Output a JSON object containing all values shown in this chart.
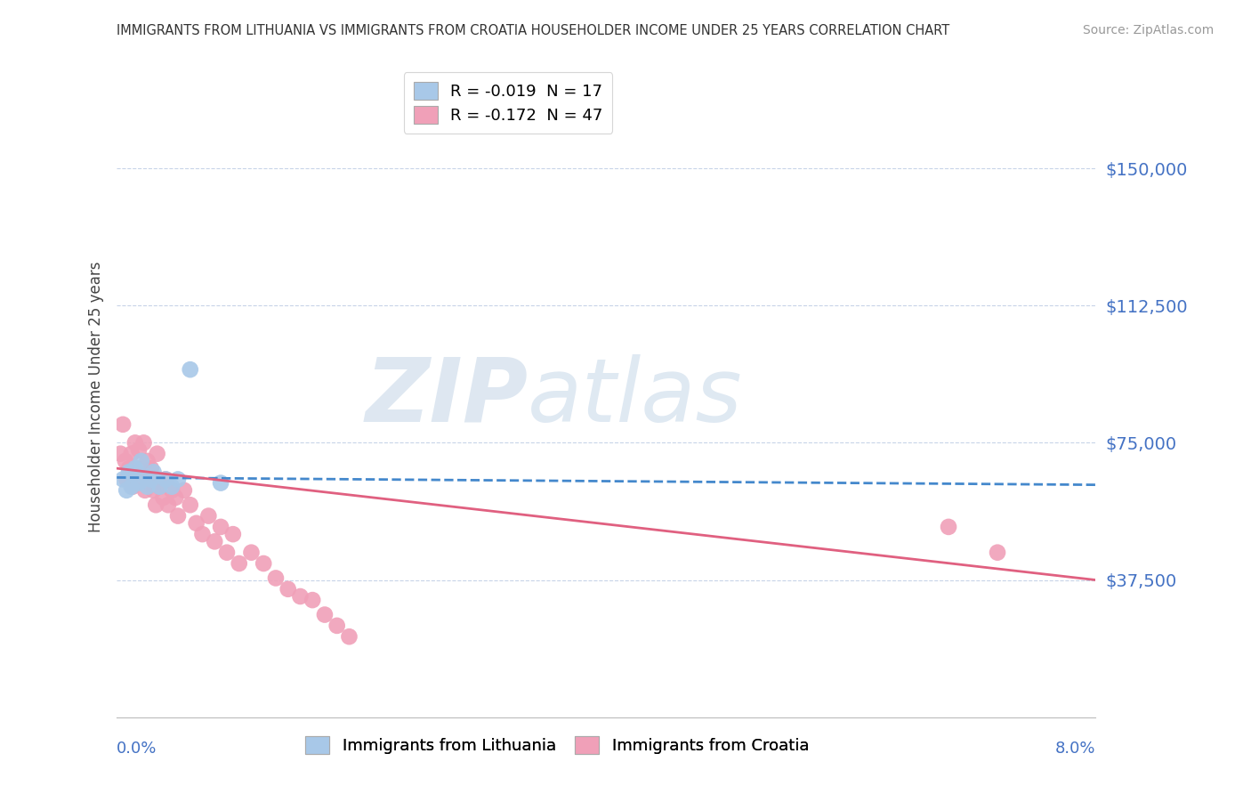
{
  "title": "IMMIGRANTS FROM LITHUANIA VS IMMIGRANTS FROM CROATIA HOUSEHOLDER INCOME UNDER 25 YEARS CORRELATION CHART",
  "source": "Source: ZipAtlas.com",
  "ylabel": "Householder Income Under 25 years",
  "xlim": [
    0.0,
    8.0
  ],
  "ylim": [
    0,
    175000
  ],
  "yticks": [
    37500,
    75000,
    112500,
    150000
  ],
  "ytick_labels": [
    "$37,500",
    "$75,000",
    "$112,500",
    "$150,000"
  ],
  "legend_r_entries": [
    "R = -0.019  N = 17",
    "R = -0.172  N = 47"
  ],
  "legend_labels_bottom": [
    "Immigrants from Lithuania",
    "Immigrants from Croatia"
  ],
  "background_color": "#ffffff",
  "grid_color": "#c8d4e8",
  "title_color": "#333333",
  "source_color": "#999999",
  "watermark_zip": "ZIP",
  "watermark_atlas": "atlas",
  "lithuania_color": "#a8c8e8",
  "croatia_color": "#f0a0b8",
  "lithuania_line_color": "#4488cc",
  "croatia_line_color": "#e06080",
  "lithuania_points_x": [
    0.05,
    0.08,
    0.1,
    0.12,
    0.15,
    0.18,
    0.2,
    0.22,
    0.25,
    0.28,
    0.3,
    0.35,
    0.4,
    0.45,
    0.5,
    0.6,
    0.85
  ],
  "lithuania_points_y": [
    65000,
    62000,
    67000,
    63000,
    68000,
    64000,
    70000,
    66000,
    63000,
    65000,
    67000,
    63000,
    65000,
    63000,
    65000,
    95000,
    64000
  ],
  "croatia_points_x": [
    0.03,
    0.05,
    0.07,
    0.08,
    0.1,
    0.12,
    0.13,
    0.15,
    0.17,
    0.18,
    0.2,
    0.22,
    0.23,
    0.25,
    0.27,
    0.28,
    0.3,
    0.32,
    0.33,
    0.35,
    0.38,
    0.4,
    0.42,
    0.45,
    0.48,
    0.5,
    0.55,
    0.6,
    0.65,
    0.7,
    0.75,
    0.8,
    0.85,
    0.9,
    0.95,
    1.0,
    1.1,
    1.2,
    1.3,
    1.4,
    1.5,
    1.6,
    1.7,
    1.8,
    1.9,
    6.8,
    7.2
  ],
  "croatia_points_y": [
    72000,
    80000,
    70000,
    65000,
    68000,
    72000,
    63000,
    75000,
    68000,
    73000,
    65000,
    75000,
    62000,
    70000,
    65000,
    68000,
    62000,
    58000,
    72000,
    63000,
    60000,
    65000,
    58000,
    62000,
    60000,
    55000,
    62000,
    58000,
    53000,
    50000,
    55000,
    48000,
    52000,
    45000,
    50000,
    42000,
    45000,
    42000,
    38000,
    35000,
    33000,
    32000,
    28000,
    25000,
    22000,
    52000,
    45000
  ],
  "lith_line_x": [
    0.0,
    8.0
  ],
  "lith_line_y": [
    65500,
    63500
  ],
  "croa_line_x": [
    0.0,
    8.0
  ],
  "croa_line_y": [
    68000,
    37500
  ]
}
